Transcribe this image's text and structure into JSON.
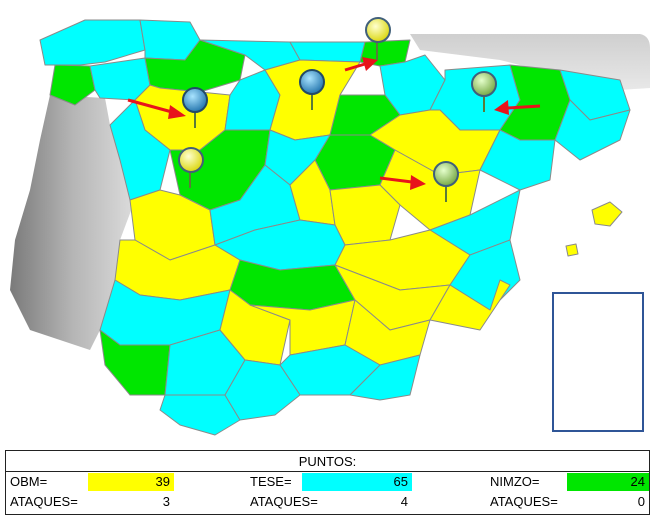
{
  "colors": {
    "obm": "#ffff00",
    "tese": "#00ffff",
    "nimzo": "#00e600",
    "sea": "#ffffff",
    "neighbor": "#b7b7b7",
    "arrow": "#e8141b",
    "border": "#8a8a8a"
  },
  "score": {
    "title": "PUNTOS:",
    "players": [
      {
        "name_label": "OBM=",
        "points": "39",
        "attacks_label": "ATAQUES=",
        "attacks": "3",
        "color": "#ffff00"
      },
      {
        "name_label": "TESE=",
        "points": "65",
        "attacks_label": "ATAQUES=",
        "attacks": "4",
        "color": "#00ffff"
      },
      {
        "name_label": "NIMZO=",
        "points": "24",
        "attacks_label": "ATAQUES=",
        "attacks": "0",
        "color": "#00e600"
      }
    ]
  },
  "map": {
    "pins": [
      {
        "name": "pin-cantabrico",
        "color": "yellow-pin-icon"
      },
      {
        "name": "pin-asturias-leon",
        "color": "blue-pin-icon"
      },
      {
        "name": "pin-galicia-sur",
        "color": "yellow-pin-icon"
      },
      {
        "name": "pin-castilla-norte",
        "color": "blue-pin-icon"
      },
      {
        "name": "pin-aragon",
        "color": "green-pin-icon"
      },
      {
        "name": "pin-teruel",
        "color": "green-pin-icon"
      }
    ],
    "arrows": [
      "arrow-to-leon",
      "arrow-to-cantabrico",
      "arrow-to-aragon",
      "arrow-to-teruel"
    ]
  }
}
